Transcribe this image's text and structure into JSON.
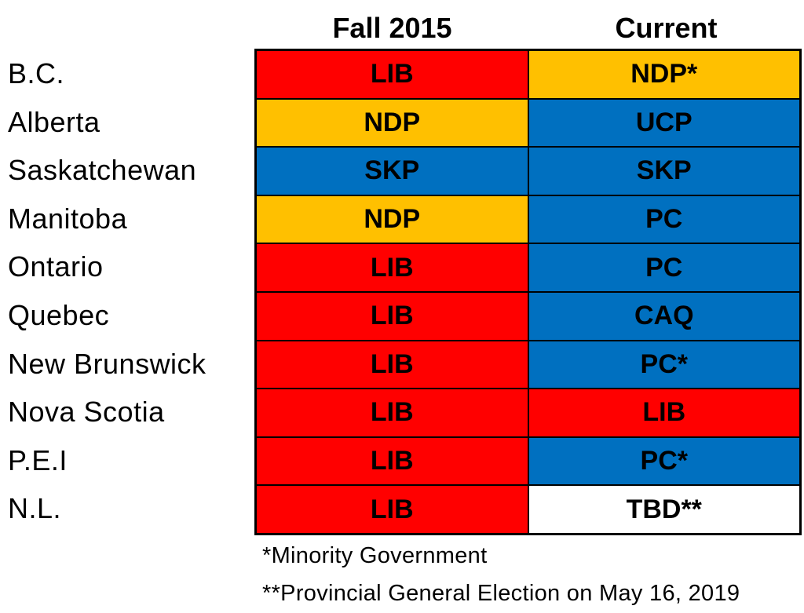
{
  "columns": [
    "Fall 2015",
    "Current"
  ],
  "colors": {
    "LIB": "#ff0000",
    "NDP": "#ffc000",
    "blue": "#0070c0",
    "TBD**": "#ffffff"
  },
  "rows": [
    {
      "province": "B.C.",
      "fall_2015": "LIB",
      "current": "NDP*"
    },
    {
      "province": "Alberta",
      "fall_2015": "NDP",
      "current": "UCP"
    },
    {
      "province": "Saskatchewan",
      "fall_2015": "SKP",
      "current": "SKP"
    },
    {
      "province": "Manitoba",
      "fall_2015": "NDP",
      "current": "PC"
    },
    {
      "province": "Ontario",
      "fall_2015": "LIB",
      "current": "PC"
    },
    {
      "province": "Quebec",
      "fall_2015": "LIB",
      "current": "CAQ"
    },
    {
      "province": "New Brunswick",
      "fall_2015": "LIB",
      "current": "PC*"
    },
    {
      "province": "Nova Scotia",
      "fall_2015": "LIB",
      "current": "LIB"
    },
    {
      "province": "P.E.I",
      "fall_2015": "LIB",
      "current": "PC*"
    },
    {
      "province": "N.L.",
      "fall_2015": "LIB",
      "current": "TBD**"
    }
  ],
  "notes": [
    "*Minority Government",
    "**Provincial General Election on May 16, 2019"
  ]
}
